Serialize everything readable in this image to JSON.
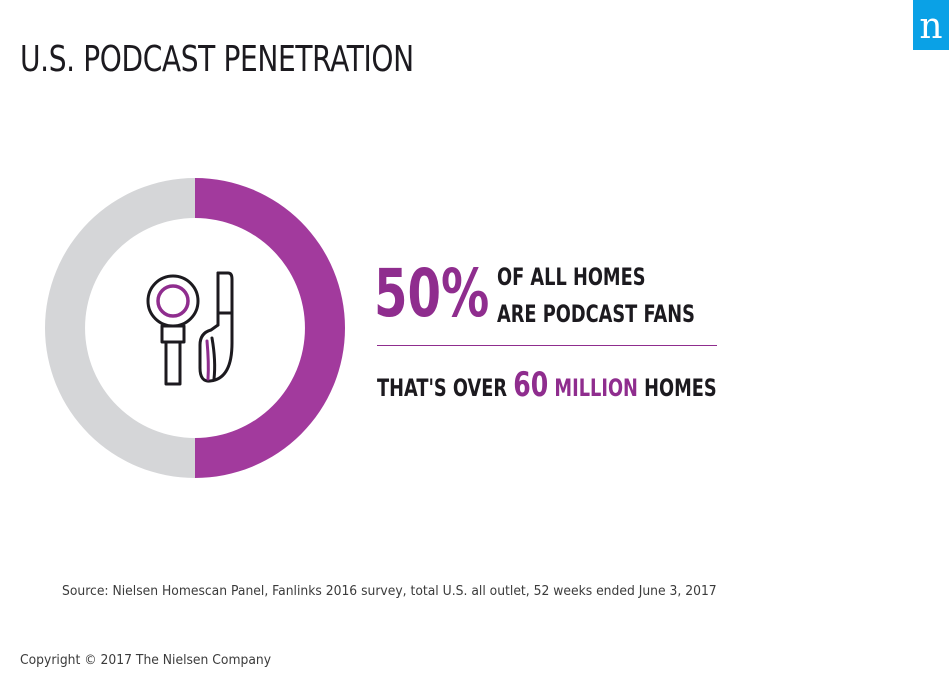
{
  "title": "U.S. PODCAST PENETRATION",
  "brand": {
    "logo_letter": "n",
    "logo_color": "#0aa1e6"
  },
  "colors": {
    "accent": "#8f2d8e",
    "donut_track": "#d5d6d8",
    "text": "#1c1a1f"
  },
  "icon": "earbuds-icon",
  "chart_data": {
    "type": "pie",
    "variant": "donut",
    "slices": [
      {
        "label": "Podcast fans",
        "value": 50,
        "color": "#a23a9d"
      },
      {
        "label": "",
        "value": 50,
        "color": "#d5d6d8"
      }
    ]
  },
  "stat": {
    "percent": "50%",
    "line1": "OF ALL HOMES",
    "line2": "ARE PODCAST FANS",
    "sub_prefix": "THAT'S OVER ",
    "sub_number": "60",
    "sub_unit": " MILLION",
    "sub_suffix": " HOMES"
  },
  "source": "Source: Nielsen Homescan Panel, Fanlinks 2016 survey, total U.S. all outlet, 52 weeks ended June 3, 2017",
  "copyright": "Copyright © 2017 The Nielsen Company"
}
